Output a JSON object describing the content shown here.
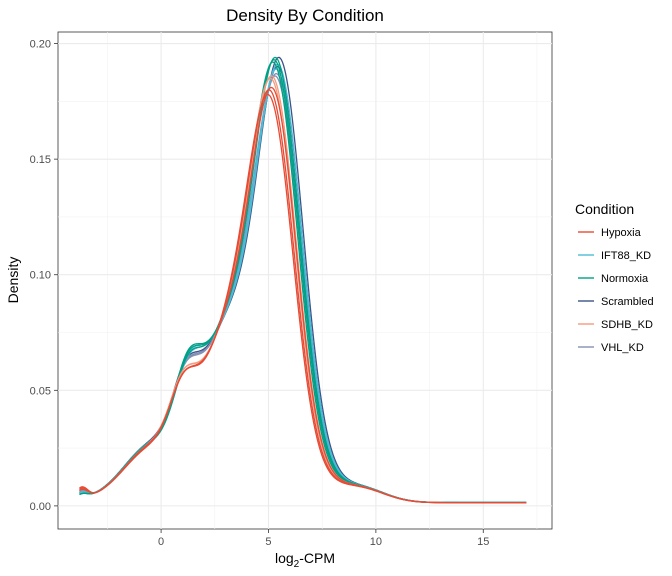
{
  "chart_data": {
    "type": "line",
    "title": "Density By Condition",
    "xlabel": "log2-CPM",
    "ylabel": "Density",
    "xlim": [
      -4.8,
      18.2
    ],
    "ylim": [
      -0.01,
      0.205
    ],
    "x_ticks": [
      0,
      5,
      10,
      15
    ],
    "x_tick_labels": [
      "0",
      "5",
      "10",
      "15"
    ],
    "y_ticks": [
      0.0,
      0.05,
      0.1,
      0.15,
      0.2
    ],
    "y_tick_labels": [
      "0.00",
      "0.05",
      "0.10",
      "0.15",
      "0.20"
    ],
    "grid": true,
    "legend": {
      "title": "Condition",
      "position": "right"
    },
    "series": [
      {
        "name": "Hypoxia",
        "color": "#e64b35",
        "samples": [
          {
            "shoulder_x": 1.0,
            "shoulder_y": 0.061,
            "peak_x": 5.2,
            "peak_y": 0.18,
            "start_y": 0.007
          },
          {
            "shoulder_x": 1.0,
            "shoulder_y": 0.059,
            "peak_x": 5.3,
            "peak_y": 0.181,
            "start_y": 0.006
          },
          {
            "shoulder_x": 1.0,
            "shoulder_y": 0.063,
            "peak_x": 5.15,
            "peak_y": 0.178,
            "start_y": 0.008
          }
        ]
      },
      {
        "name": "IFT88_KD",
        "color": "#4dbbd5",
        "samples": [
          {
            "shoulder_x": 1.2,
            "shoulder_y": 0.066,
            "peak_x": 5.55,
            "peak_y": 0.191,
            "start_y": 0.004
          },
          {
            "shoulder_x": 1.2,
            "shoulder_y": 0.064,
            "peak_x": 5.5,
            "peak_y": 0.189,
            "start_y": 0.004
          }
        ]
      },
      {
        "name": "Normoxia",
        "color": "#00a087",
        "samples": [
          {
            "shoulder_x": 1.2,
            "shoulder_y": 0.07,
            "peak_x": 5.4,
            "peak_y": 0.193,
            "start_y": 0.003
          },
          {
            "shoulder_x": 1.2,
            "shoulder_y": 0.068,
            "peak_x": 5.35,
            "peak_y": 0.192,
            "start_y": 0.003
          },
          {
            "shoulder_x": 1.2,
            "shoulder_y": 0.071,
            "peak_x": 5.45,
            "peak_y": 0.194,
            "start_y": 0.003
          }
        ]
      },
      {
        "name": "Scrambled",
        "color": "#3c5488",
        "samples": [
          {
            "shoulder_x": 1.1,
            "shoulder_y": 0.063,
            "peak_x": 5.6,
            "peak_y": 0.194,
            "start_y": 0.004
          },
          {
            "shoulder_x": 1.1,
            "shoulder_y": 0.062,
            "peak_x": 5.55,
            "peak_y": 0.19,
            "start_y": 0.004
          }
        ]
      },
      {
        "name": "SDHB_KD",
        "color": "#f39b7f",
        "samples": [
          {
            "shoulder_x": 1.0,
            "shoulder_y": 0.062,
            "peak_x": 5.3,
            "peak_y": 0.186,
            "start_y": 0.006
          },
          {
            "shoulder_x": 1.0,
            "shoulder_y": 0.063,
            "peak_x": 5.25,
            "peak_y": 0.185,
            "start_y": 0.006
          }
        ]
      },
      {
        "name": "VHL_KD",
        "color": "#8491b4",
        "samples": [
          {
            "shoulder_x": 1.1,
            "shoulder_y": 0.064,
            "peak_x": 5.5,
            "peak_y": 0.187,
            "start_y": 0.005
          },
          {
            "shoulder_x": 1.1,
            "shoulder_y": 0.063,
            "peak_x": 5.45,
            "peak_y": 0.186,
            "start_y": 0.005
          }
        ]
      }
    ]
  }
}
